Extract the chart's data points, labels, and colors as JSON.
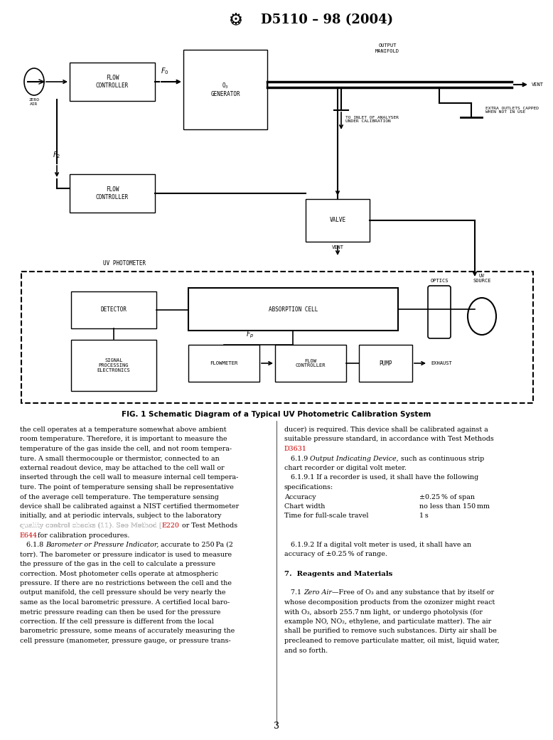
{
  "title": "D5110 – 98 (2004)",
  "fig_caption": "FIG. 1 Schematic Diagram of a Typical UV Photometric Calibration System",
  "page_number": "3",
  "bg_color": "#ffffff",
  "text_color": "#000000",
  "red_color": "#cc0000"
}
